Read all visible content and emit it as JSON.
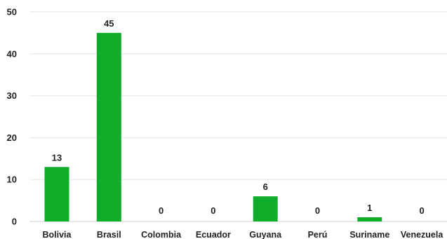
{
  "chart_data": {
    "type": "bar",
    "title": "",
    "xlabel": "",
    "ylabel": "",
    "categories": [
      "Bolivia",
      "Brasil",
      "Colombia",
      "Ecuador",
      "Guyana",
      "Perú",
      "Suriname",
      "Venezuela"
    ],
    "values": [
      13,
      45,
      0,
      0,
      6,
      0,
      1,
      0
    ],
    "ylim": [
      0,
      50
    ],
    "yticks": [
      0,
      10,
      20,
      30,
      40,
      50
    ],
    "data_labels": true,
    "grid": true,
    "legend": "none",
    "bar_color": "#10ad2a"
  }
}
